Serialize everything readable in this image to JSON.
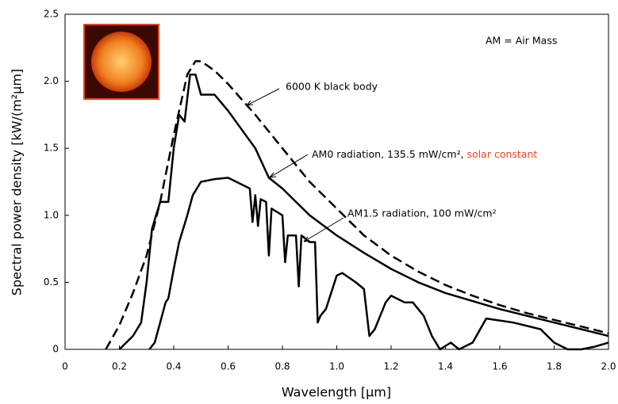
{
  "chart_data": {
    "type": "line",
    "x_label": "Wavelength [µm]",
    "y_label": "Spectral power density [kW/(m²µm]",
    "xlim": [
      0,
      2
    ],
    "ylim": [
      0,
      2.5
    ],
    "xticks": [
      0,
      0.2,
      0.4,
      0.6,
      0.8,
      {
        "value": 1,
        "label": "1.0"
      },
      1.2,
      1.4,
      1.6,
      1.8,
      {
        "value": 2,
        "label": "2.0"
      }
    ],
    "yticks": [
      0,
      0.5,
      {
        "value": 1,
        "label": "1.0"
      },
      1.5,
      {
        "value": 2,
        "label": "2.0"
      },
      2.5
    ],
    "annotations": [
      "6000 K black body",
      "AM0 radiation, 135.5 mW/cm²,",
      "solar constant",
      "AM1.5 radiation, 100 mW/cm²",
      "AM = Air Mass"
    ],
    "series": [
      {
        "color": "#000000",
        "line_style": "dashed",
        "x": [
          0.15,
          0.2,
          0.25,
          0.3,
          0.35,
          0.4,
          0.45,
          0.48,
          0.5,
          0.55,
          0.6,
          0.7,
          0.8,
          0.9,
          1.0,
          1.1,
          1.2,
          1.3,
          1.4,
          1.5,
          1.6,
          1.7,
          1.8,
          1.9,
          2.0
        ],
        "values": [
          0,
          0.18,
          0.42,
          0.7,
          1.1,
          1.6,
          2.05,
          2.15,
          2.15,
          2.08,
          1.98,
          1.75,
          1.5,
          1.25,
          1.05,
          0.85,
          0.7,
          0.58,
          0.48,
          0.4,
          0.33,
          0.27,
          0.22,
          0.17,
          0.12
        ]
      },
      {
        "color": "#000000",
        "line_style": "solid",
        "x": [
          0.2,
          0.25,
          0.28,
          0.3,
          0.32,
          0.35,
          0.38,
          0.4,
          0.42,
          0.44,
          0.46,
          0.48,
          0.5,
          0.55,
          0.6,
          0.7,
          0.75,
          0.8,
          0.9,
          1.0,
          1.1,
          1.2,
          1.3,
          1.4,
          1.5,
          1.6,
          1.7,
          1.8,
          1.9,
          2.0
        ],
        "values": [
          0,
          0.1,
          0.2,
          0.5,
          0.9,
          1.1,
          1.1,
          1.5,
          1.75,
          1.7,
          2.05,
          2.05,
          1.9,
          1.9,
          1.78,
          1.5,
          1.28,
          1.2,
          1.0,
          0.85,
          0.72,
          0.6,
          0.5,
          0.42,
          0.36,
          0.3,
          0.25,
          0.2,
          0.15,
          0.1
        ]
      },
      {
        "color": "#000000",
        "line_style": "solid",
        "x": [
          0.31,
          0.33,
          0.35,
          0.37,
          0.38,
          0.4,
          0.42,
          0.45,
          0.47,
          0.5,
          0.55,
          0.6,
          0.65,
          0.68,
          0.69,
          0.7,
          0.71,
          0.72,
          0.74,
          0.75,
          0.76,
          0.8,
          0.81,
          0.82,
          0.85,
          0.86,
          0.87,
          0.9,
          0.92,
          0.93,
          0.94,
          0.96,
          1.0,
          1.02,
          1.07,
          1.1,
          1.12,
          1.14,
          1.18,
          1.2,
          1.25,
          1.28,
          1.32,
          1.35,
          1.38,
          1.42,
          1.45,
          1.5,
          1.55,
          1.65,
          1.75,
          1.8,
          1.85,
          1.9,
          1.95,
          2.0
        ],
        "values": [
          0,
          0.05,
          0.2,
          0.35,
          0.38,
          0.6,
          0.8,
          1.0,
          1.15,
          1.25,
          1.27,
          1.28,
          1.23,
          1.2,
          0.95,
          1.15,
          0.92,
          1.12,
          1.1,
          0.7,
          1.05,
          1.0,
          0.65,
          0.85,
          0.85,
          0.47,
          0.85,
          0.8,
          0.8,
          0.2,
          0.25,
          0.3,
          0.55,
          0.57,
          0.5,
          0.45,
          0.1,
          0.15,
          0.35,
          0.4,
          0.35,
          0.35,
          0.25,
          0.1,
          0,
          0.05,
          0,
          0.05,
          0.23,
          0.2,
          0.15,
          0.05,
          0,
          0,
          0.02,
          0.05
        ]
      }
    ]
  }
}
